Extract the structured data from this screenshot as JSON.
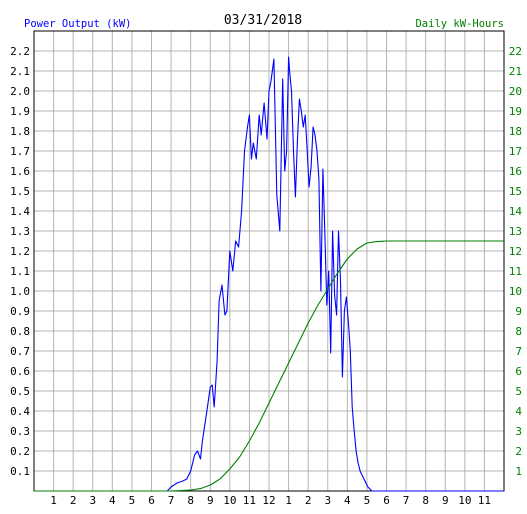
{
  "header": {
    "left_label": "Power Output (kW)",
    "date": "03/31/2018",
    "right_label": "Daily kW-Hours"
  },
  "colors": {
    "power": "#0000ff",
    "energy": "#008000",
    "grid": "#b4b4b4",
    "axis": "#000000"
  },
  "chart_data": {
    "type": "line",
    "title": "03/31/2018",
    "ylabel_left": "Power Output (kW)",
    "ylabel_right": "Daily kW-Hours",
    "xlim": [
      0,
      24
    ],
    "ylim_left": [
      0,
      2.3
    ],
    "ylim_right": [
      0,
      23
    ],
    "grid": true,
    "x_tick_labels": [
      "1",
      "2",
      "3",
      "4",
      "5",
      "6",
      "7",
      "8",
      "9",
      "10",
      "11",
      "12",
      "1",
      "2",
      "3",
      "4",
      "5",
      "6",
      "7",
      "8",
      "9",
      "10",
      "11"
    ],
    "y_left_tick_labels": [
      "0.1",
      "0.2",
      "0.3",
      "0.4",
      "0.5",
      "0.6",
      "0.7",
      "0.8",
      "0.9",
      "1.0",
      "1.1",
      "1.2",
      "1.3",
      "1.4",
      "1.5",
      "1.6",
      "1.7",
      "1.8",
      "1.9",
      "2.0",
      "2.1",
      "2.2"
    ],
    "y_right_tick_labels": [
      "1",
      "2",
      "3",
      "4",
      "5",
      "6",
      "7",
      "8",
      "9",
      "10",
      "11",
      "12",
      "13",
      "14",
      "15",
      "16",
      "17",
      "18",
      "19",
      "20",
      "21",
      "22"
    ],
    "series": [
      {
        "name": "Power Output (kW)",
        "axis": "left",
        "x": [
          0,
          6.8,
          7.0,
          7.3,
          7.6,
          7.8,
          8.0,
          8.2,
          8.35,
          8.5,
          8.6,
          8.8,
          9.0,
          9.1,
          9.2,
          9.35,
          9.45,
          9.6,
          9.75,
          9.85,
          10.0,
          10.15,
          10.3,
          10.45,
          10.6,
          10.75,
          10.9,
          11.0,
          11.1,
          11.2,
          11.35,
          11.5,
          11.6,
          11.75,
          11.9,
          12.0,
          12.1,
          12.25,
          12.4,
          12.55,
          12.7,
          12.8,
          12.9,
          13.0,
          13.05,
          13.15,
          13.25,
          13.35,
          13.45,
          13.55,
          13.65,
          13.75,
          13.85,
          13.95,
          14.05,
          14.15,
          14.25,
          14.35,
          14.45,
          14.55,
          14.65,
          14.75,
          14.85,
          14.95,
          15.05,
          15.15,
          15.25,
          15.35,
          15.45,
          15.55,
          15.65,
          15.75,
          15.85,
          15.95,
          16.05,
          16.15,
          16.25,
          16.35,
          16.45,
          16.55,
          16.65,
          16.75,
          16.85,
          16.95,
          17.05,
          17.15,
          17.25,
          17.35,
          17.45,
          17.55,
          17.65,
          17.75,
          17.85,
          17.95,
          18.1,
          18.3,
          18.5,
          18.8,
          19.0,
          19.2,
          19.4,
          19.6,
          24
        ],
        "values": [
          0,
          0,
          0.02,
          0.04,
          0.05,
          0.06,
          0.1,
          0.18,
          0.2,
          0.16,
          0.25,
          0.38,
          0.52,
          0.53,
          0.42,
          0.65,
          0.95,
          1.03,
          0.88,
          0.9,
          1.2,
          1.1,
          1.25,
          1.22,
          1.4,
          1.7,
          1.82,
          1.88,
          1.66,
          1.74,
          1.66,
          1.88,
          1.78,
          1.94,
          1.76,
          2.0,
          2.05,
          2.16,
          1.48,
          1.3,
          2.06,
          1.6,
          1.7,
          2.17,
          2.1,
          2.0,
          1.7,
          1.47,
          1.75,
          1.96,
          1.9,
          1.82,
          1.88,
          1.7,
          1.52,
          1.62,
          1.82,
          1.78,
          1.7,
          1.56,
          1.0,
          1.61,
          1.3,
          0.93,
          1.1,
          0.69,
          1.3,
          0.98,
          0.88,
          1.3,
          1.05,
          0.57,
          0.9,
          0.97,
          0.85,
          0.7,
          0.42,
          0.3,
          0.2,
          0.14,
          0.1,
          0.08,
          0.06,
          0.04,
          0.02,
          0.01,
          0,
          0,
          0,
          0,
          0,
          0,
          0,
          0,
          0,
          0,
          0,
          0,
          0,
          0,
          0,
          0,
          0
        ]
      },
      {
        "name": "Daily kW-Hours",
        "axis": "right",
        "x": [
          0,
          7.0,
          7.5,
          8.0,
          8.5,
          9.0,
          9.5,
          10.0,
          10.5,
          11.0,
          11.5,
          12.0,
          12.5,
          13.0,
          13.5,
          14.0,
          14.5,
          15.0,
          15.5,
          16.0,
          16.5,
          17.0,
          17.5,
          18.0,
          18.5,
          19.0,
          20.0,
          21.0,
          22.0,
          23.0,
          24
        ],
        "values": [
          0,
          0,
          0.02,
          0.05,
          0.12,
          0.3,
          0.6,
          1.1,
          1.7,
          2.5,
          3.4,
          4.4,
          5.4,
          6.4,
          7.4,
          8.4,
          9.3,
          10.1,
          10.9,
          11.6,
          12.1,
          12.4,
          12.47,
          12.5,
          12.5,
          12.5,
          12.5,
          12.5,
          12.5,
          12.5,
          12.5
        ]
      }
    ]
  }
}
